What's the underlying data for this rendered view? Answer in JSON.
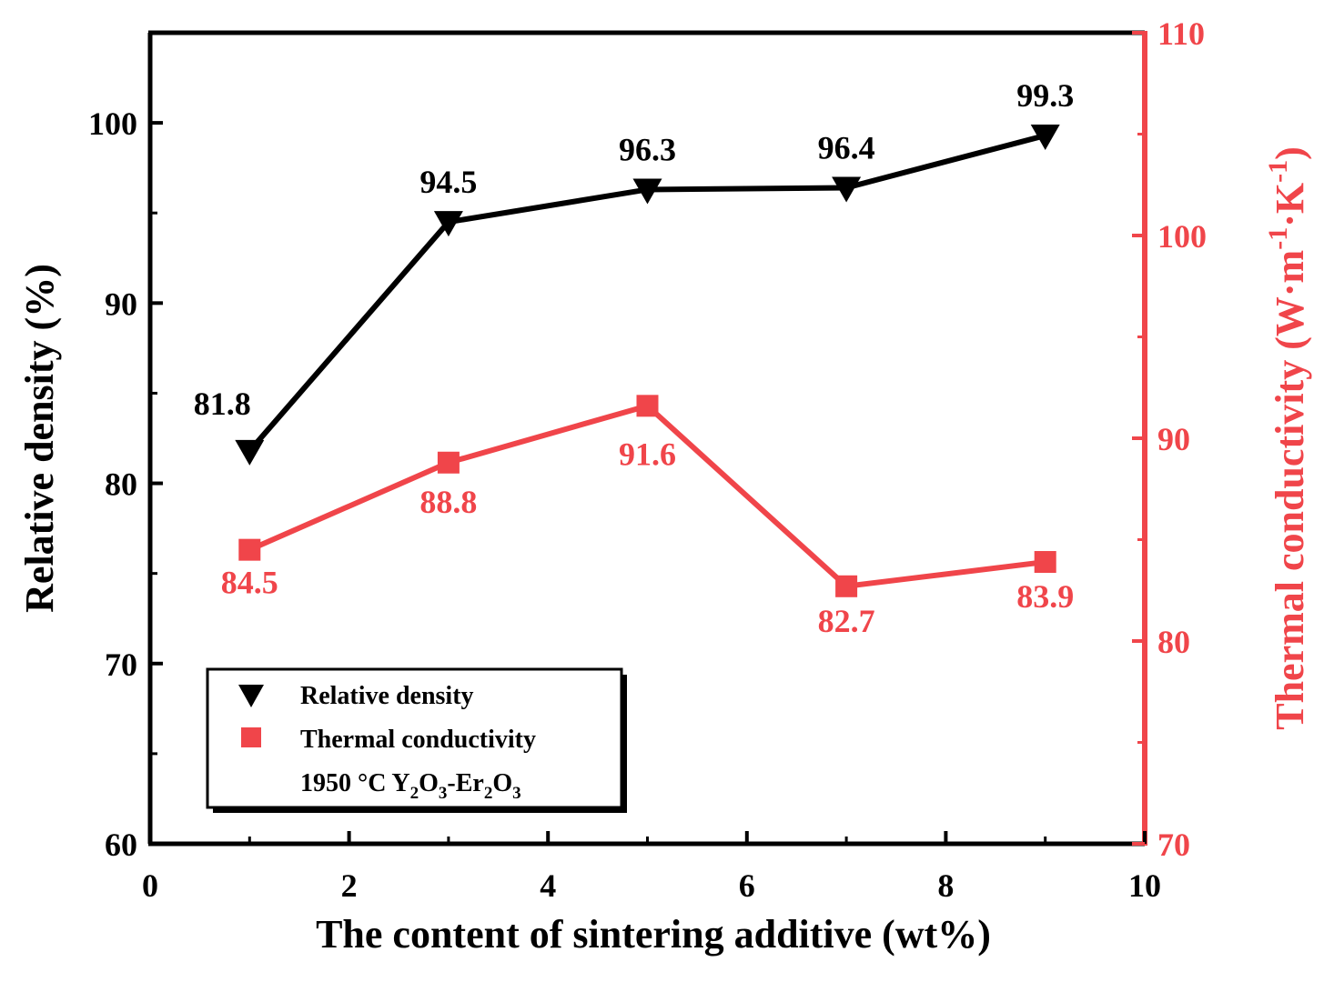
{
  "chart_data": {
    "type": "line",
    "x": [
      1,
      3,
      5,
      7,
      9
    ],
    "xlabel": "The content of sintering additive (wt%)",
    "xlim": [
      0,
      10
    ],
    "xticks": [
      "0",
      "2",
      "4",
      "6",
      "8",
      "10"
    ],
    "ylabel_left": "Relative density (%)",
    "ylim_left": [
      60,
      105
    ],
    "yticks_left": [
      "60",
      "70",
      "80",
      "90",
      "100"
    ],
    "ylabel_right": {
      "base": "Thermal conductivity (W·m",
      "sup1": "-1",
      "mid": "·K",
      "sup2": "-1",
      "end": ")"
    },
    "ylim_right": [
      70,
      110
    ],
    "yticks_right": [
      "70",
      "80",
      "90",
      "100",
      "110"
    ],
    "series": [
      {
        "name": "Relative density",
        "axis": "left",
        "marker": "triangle-down",
        "color": "#000000",
        "values": [
          81.8,
          94.5,
          96.3,
          96.4,
          99.3
        ],
        "labels": [
          "81.8",
          "94.5",
          "96.3",
          "96.4",
          "99.3"
        ]
      },
      {
        "name": "Thermal conductivity",
        "axis": "right",
        "marker": "square",
        "color": "#f0454a",
        "values": [
          84.5,
          88.8,
          91.6,
          82.7,
          83.9
        ],
        "labels": [
          "84.5",
          "88.8",
          "91.6",
          "82.7",
          "83.9"
        ]
      }
    ],
    "legend": {
      "position": "bottom-left",
      "entries": [
        "Relative density",
        "Thermal conductivity"
      ],
      "note": {
        "prefix": "1950 °C Y",
        "sub1": "2",
        "t1": "O",
        "sub2": "3",
        "t2": "-Er",
        "sub3": "2",
        "t3": "O",
        "sub4": "3"
      }
    }
  }
}
